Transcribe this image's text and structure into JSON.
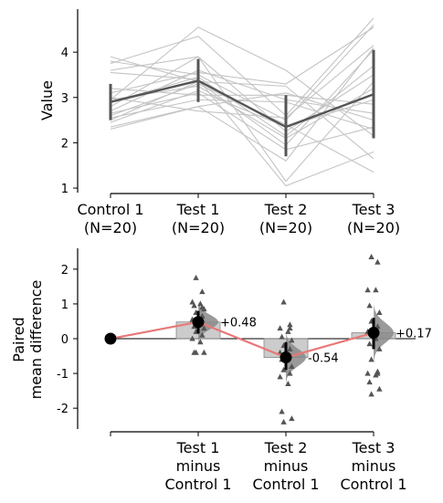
{
  "chart_data": [
    {
      "type": "line",
      "subtype": "paired-slopegraph",
      "ylabel": "Value",
      "ylim": [
        0.9,
        4.95
      ],
      "yticks": [
        1,
        2,
        3,
        4
      ],
      "xticks": [
        {
          "line1": "Control 1",
          "line2": "(N=20)"
        },
        {
          "line1": "Test 1",
          "line2": "(N=20)"
        },
        {
          "line1": "Test 2",
          "line2": "(N=20)"
        },
        {
          "line1": "Test 3",
          "line2": "(N=20)"
        }
      ],
      "individual_lines": [
        [
          2.95,
          4.55,
          3.6,
          2.15
        ],
        [
          3.9,
          3.35,
          3.25,
          1.65
        ],
        [
          3.8,
          3.5,
          2.5,
          4.6
        ],
        [
          3.75,
          4.35,
          2.6,
          4.75
        ],
        [
          3.6,
          3.9,
          2.25,
          3.5
        ],
        [
          3.55,
          3.4,
          1.05,
          1.8
        ],
        [
          3.2,
          3.05,
          3.05,
          2.85
        ],
        [
          3.1,
          3.55,
          3.3,
          4.55
        ],
        [
          3.0,
          2.7,
          2.55,
          4.15
        ],
        [
          2.95,
          3.25,
          2.1,
          3.2
        ],
        [
          2.9,
          3.45,
          2.15,
          3.7
        ],
        [
          2.8,
          3.9,
          1.15,
          3.35
        ],
        [
          2.7,
          3.6,
          2.95,
          2.65
        ],
        [
          2.65,
          3.1,
          1.85,
          2.35
        ],
        [
          2.6,
          3.3,
          2.4,
          1.35
        ],
        [
          2.55,
          2.95,
          2.9,
          2.3
        ],
        [
          2.5,
          3.35,
          1.95,
          4.05
        ],
        [
          2.45,
          3.15,
          2.35,
          2.95
        ],
        [
          2.35,
          2.8,
          3.1,
          2.5
        ],
        [
          2.3,
          2.8,
          1.6,
          4.1
        ]
      ],
      "group_mean": [
        2.9,
        3.37,
        2.35,
        3.07
      ],
      "group_error": [
        [
          2.5,
          3.3
        ],
        [
          2.9,
          3.85
        ],
        [
          1.7,
          3.05
        ],
        [
          2.1,
          4.05
        ]
      ]
    },
    {
      "type": "scatter",
      "subtype": "paired-mean-difference",
      "ylabel_line1": "Paired",
      "ylabel_line2": "mean difference",
      "ylim": [
        -2.6,
        2.6
      ],
      "yticks": [
        -2,
        -1,
        0,
        1,
        2
      ],
      "xticks": [
        {
          "line1": "",
          "line2": "",
          "line3": ""
        },
        {
          "line1": "Test 1",
          "line2": "minus",
          "line3": "Control 1"
        },
        {
          "line1": "Test 2",
          "line2": "minus",
          "line3": "Control 1"
        },
        {
          "line1": "Test 3",
          "line2": "minus",
          "line3": "Control 1"
        }
      ],
      "mean_differences": [
        0,
        0.48,
        -0.54,
        0.17
      ],
      "labels": [
        "",
        "+0.48",
        "-0.54",
        "+0.17"
      ],
      "ci": [
        [
          0,
          0
        ],
        [
          0.15,
          0.8
        ],
        [
          -0.9,
          -0.1
        ],
        [
          -0.3,
          0.6
        ]
      ],
      "bar_color": "#999999",
      "line_color": "#e87878",
      "deltas": [
        [],
        [
          1.75,
          1.35,
          1.05,
          1.0,
          0.95,
          0.85,
          0.75,
          0.65,
          0.55,
          0.45,
          0.35,
          0.3,
          0.2,
          0.1,
          0.0,
          -0.1,
          -0.4,
          -0.4,
          -0.4,
          0.9
        ],
        [
          1.05,
          0.3,
          0.3,
          0.2,
          0.05,
          -0.05,
          -0.2,
          -0.3,
          -0.4,
          -0.5,
          -0.6,
          -0.8,
          -0.9,
          -1.0,
          -1.1,
          -1.3,
          -2.1,
          -2.3,
          -2.4,
          0.4
        ],
        [
          2.35,
          2.2,
          1.4,
          1.4,
          0.95,
          0.75,
          0.5,
          0.35,
          0.2,
          0.0,
          -0.15,
          -0.3,
          -0.6,
          -0.95,
          -1.0,
          -1.05,
          -1.25,
          -1.45,
          -1.6,
          -1.0
        ]
      ]
    }
  ]
}
